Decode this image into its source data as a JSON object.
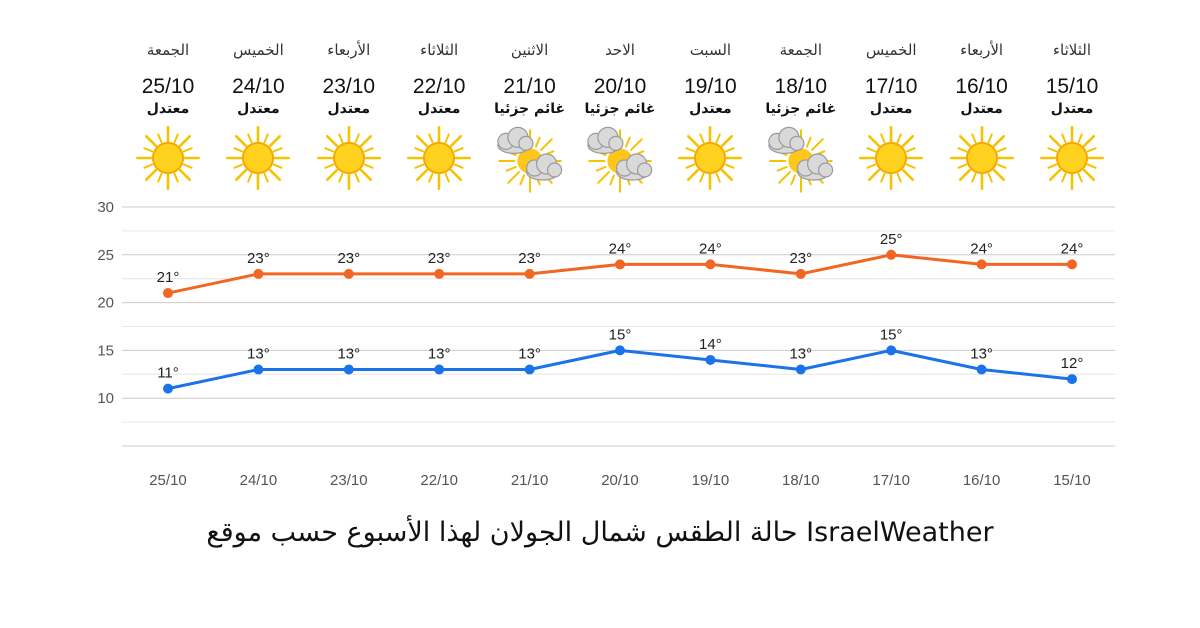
{
  "forecast": [
    {
      "day": "الجمعة",
      "date": "25/10",
      "condition": "معتدل",
      "icon": "sun-icon"
    },
    {
      "day": "الخميس",
      "date": "24/10",
      "condition": "معتدل",
      "icon": "sun-icon"
    },
    {
      "day": "الأربعاء",
      "date": "23/10",
      "condition": "معتدل",
      "icon": "sun-icon"
    },
    {
      "day": "الثلاثاء",
      "date": "22/10",
      "condition": "معتدل",
      "icon": "sun-icon"
    },
    {
      "day": "الاثنين",
      "date": "21/10",
      "condition": "غائم جزئيا",
      "icon": "partly-cloudy-icon"
    },
    {
      "day": "الاحد",
      "date": "20/10",
      "condition": "غائم جزئيا",
      "icon": "partly-cloudy-icon"
    },
    {
      "day": "السبت",
      "date": "19/10",
      "condition": "معتدل",
      "icon": "sun-icon"
    },
    {
      "day": "الجمعة",
      "date": "18/10",
      "condition": "غائم جزئيا",
      "icon": "partly-cloudy-icon"
    },
    {
      "day": "الخميس",
      "date": "17/10",
      "condition": "معتدل",
      "icon": "sun-icon"
    },
    {
      "day": "الأربعاء",
      "date": "16/10",
      "condition": "معتدل",
      "icon": "sun-icon"
    },
    {
      "day": "الثلاثاء",
      "date": "15/10",
      "condition": "معتدل",
      "icon": "sun-icon"
    }
  ],
  "chart_data": {
    "type": "line",
    "categories": [
      "25/10",
      "24/10",
      "23/10",
      "22/10",
      "21/10",
      "20/10",
      "19/10",
      "18/10",
      "17/10",
      "16/10",
      "15/10"
    ],
    "series": [
      {
        "values": [
          21,
          23,
          23,
          23,
          23,
          24,
          24,
          23,
          25,
          24,
          24
        ],
        "color": "#f26522"
      },
      {
        "values": [
          11,
          13,
          13,
          13,
          13,
          15,
          14,
          13,
          15,
          13,
          12
        ],
        "color": "#1a73e8"
      }
    ],
    "value_suffix": "°",
    "ylim": [
      5,
      30
    ],
    "yticks": [
      10,
      15,
      20,
      25,
      30
    ],
    "grid": true,
    "legend": "none"
  },
  "caption": "حالة الطقس شمال الجولان لهذا الأسبوع حسب موقع IsraelWeather"
}
